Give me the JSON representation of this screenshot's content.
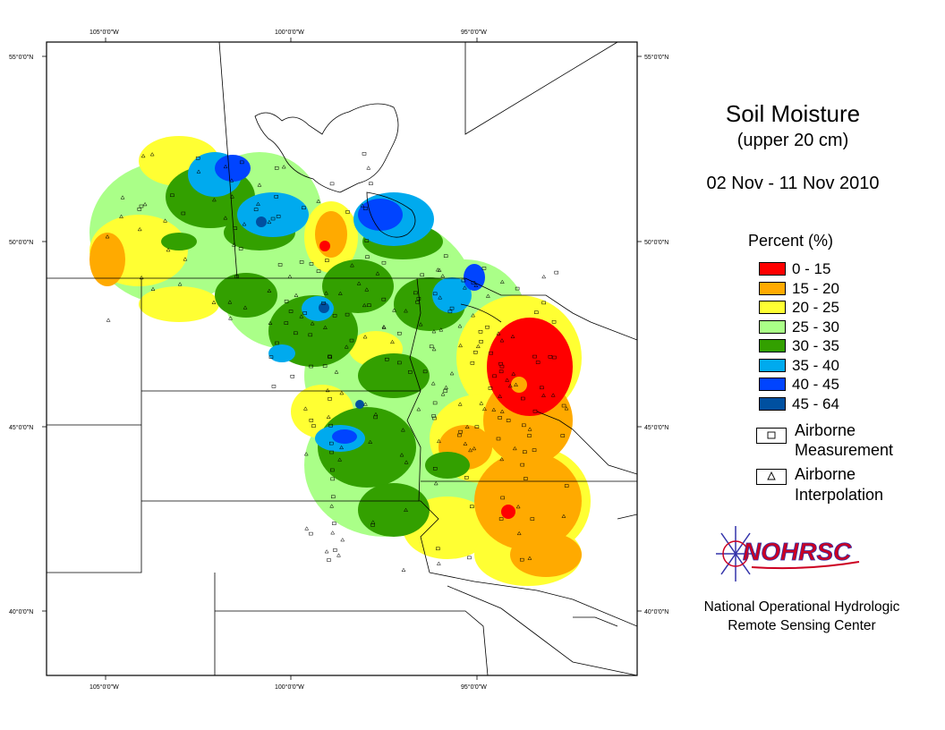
{
  "title": "Soil Moisture",
  "subtitle": "(upper 20 cm)",
  "date_range": "02 Nov - 11 Nov 2010",
  "legend": {
    "title": "Percent (%)",
    "classes": [
      {
        "label": "0 - 15",
        "color": "#ff0000"
      },
      {
        "label": "15 - 20",
        "color": "#ffaa00"
      },
      {
        "label": "20 - 25",
        "color": "#ffff33"
      },
      {
        "label": "25 - 30",
        "color": "#aaff88"
      },
      {
        "label": "30 - 35",
        "color": "#33a000"
      },
      {
        "label": "35 - 40",
        "color": "#00aaee"
      },
      {
        "label": "40 - 45",
        "color": "#0044ff"
      },
      {
        "label": "45 - 64",
        "color": "#0050a0"
      }
    ],
    "symbols": [
      {
        "label_line1": "Airborne",
        "label_line2": "Measurement",
        "icon": "square-marker-icon"
      },
      {
        "label_line1": "Airborne",
        "label_line2": "Interpolation",
        "icon": "triangle-marker-icon"
      }
    ]
  },
  "logo": {
    "text": "NOHRSC",
    "icon": "snowflake-icon",
    "accent_color": "#cc0022",
    "outline_color": "#3333aa"
  },
  "organization": {
    "line1": "National Operational Hydrologic",
    "line2": "Remote Sensing Center"
  },
  "graticule": {
    "lon_labels": [
      "105°0'0\"W",
      "100°0'0\"W",
      "95°0'0\"W"
    ],
    "lat_labels": [
      "55°0'0\"N",
      "50°0'0\"N",
      "45°0'0\"N",
      "40°0'0\"N"
    ]
  }
}
